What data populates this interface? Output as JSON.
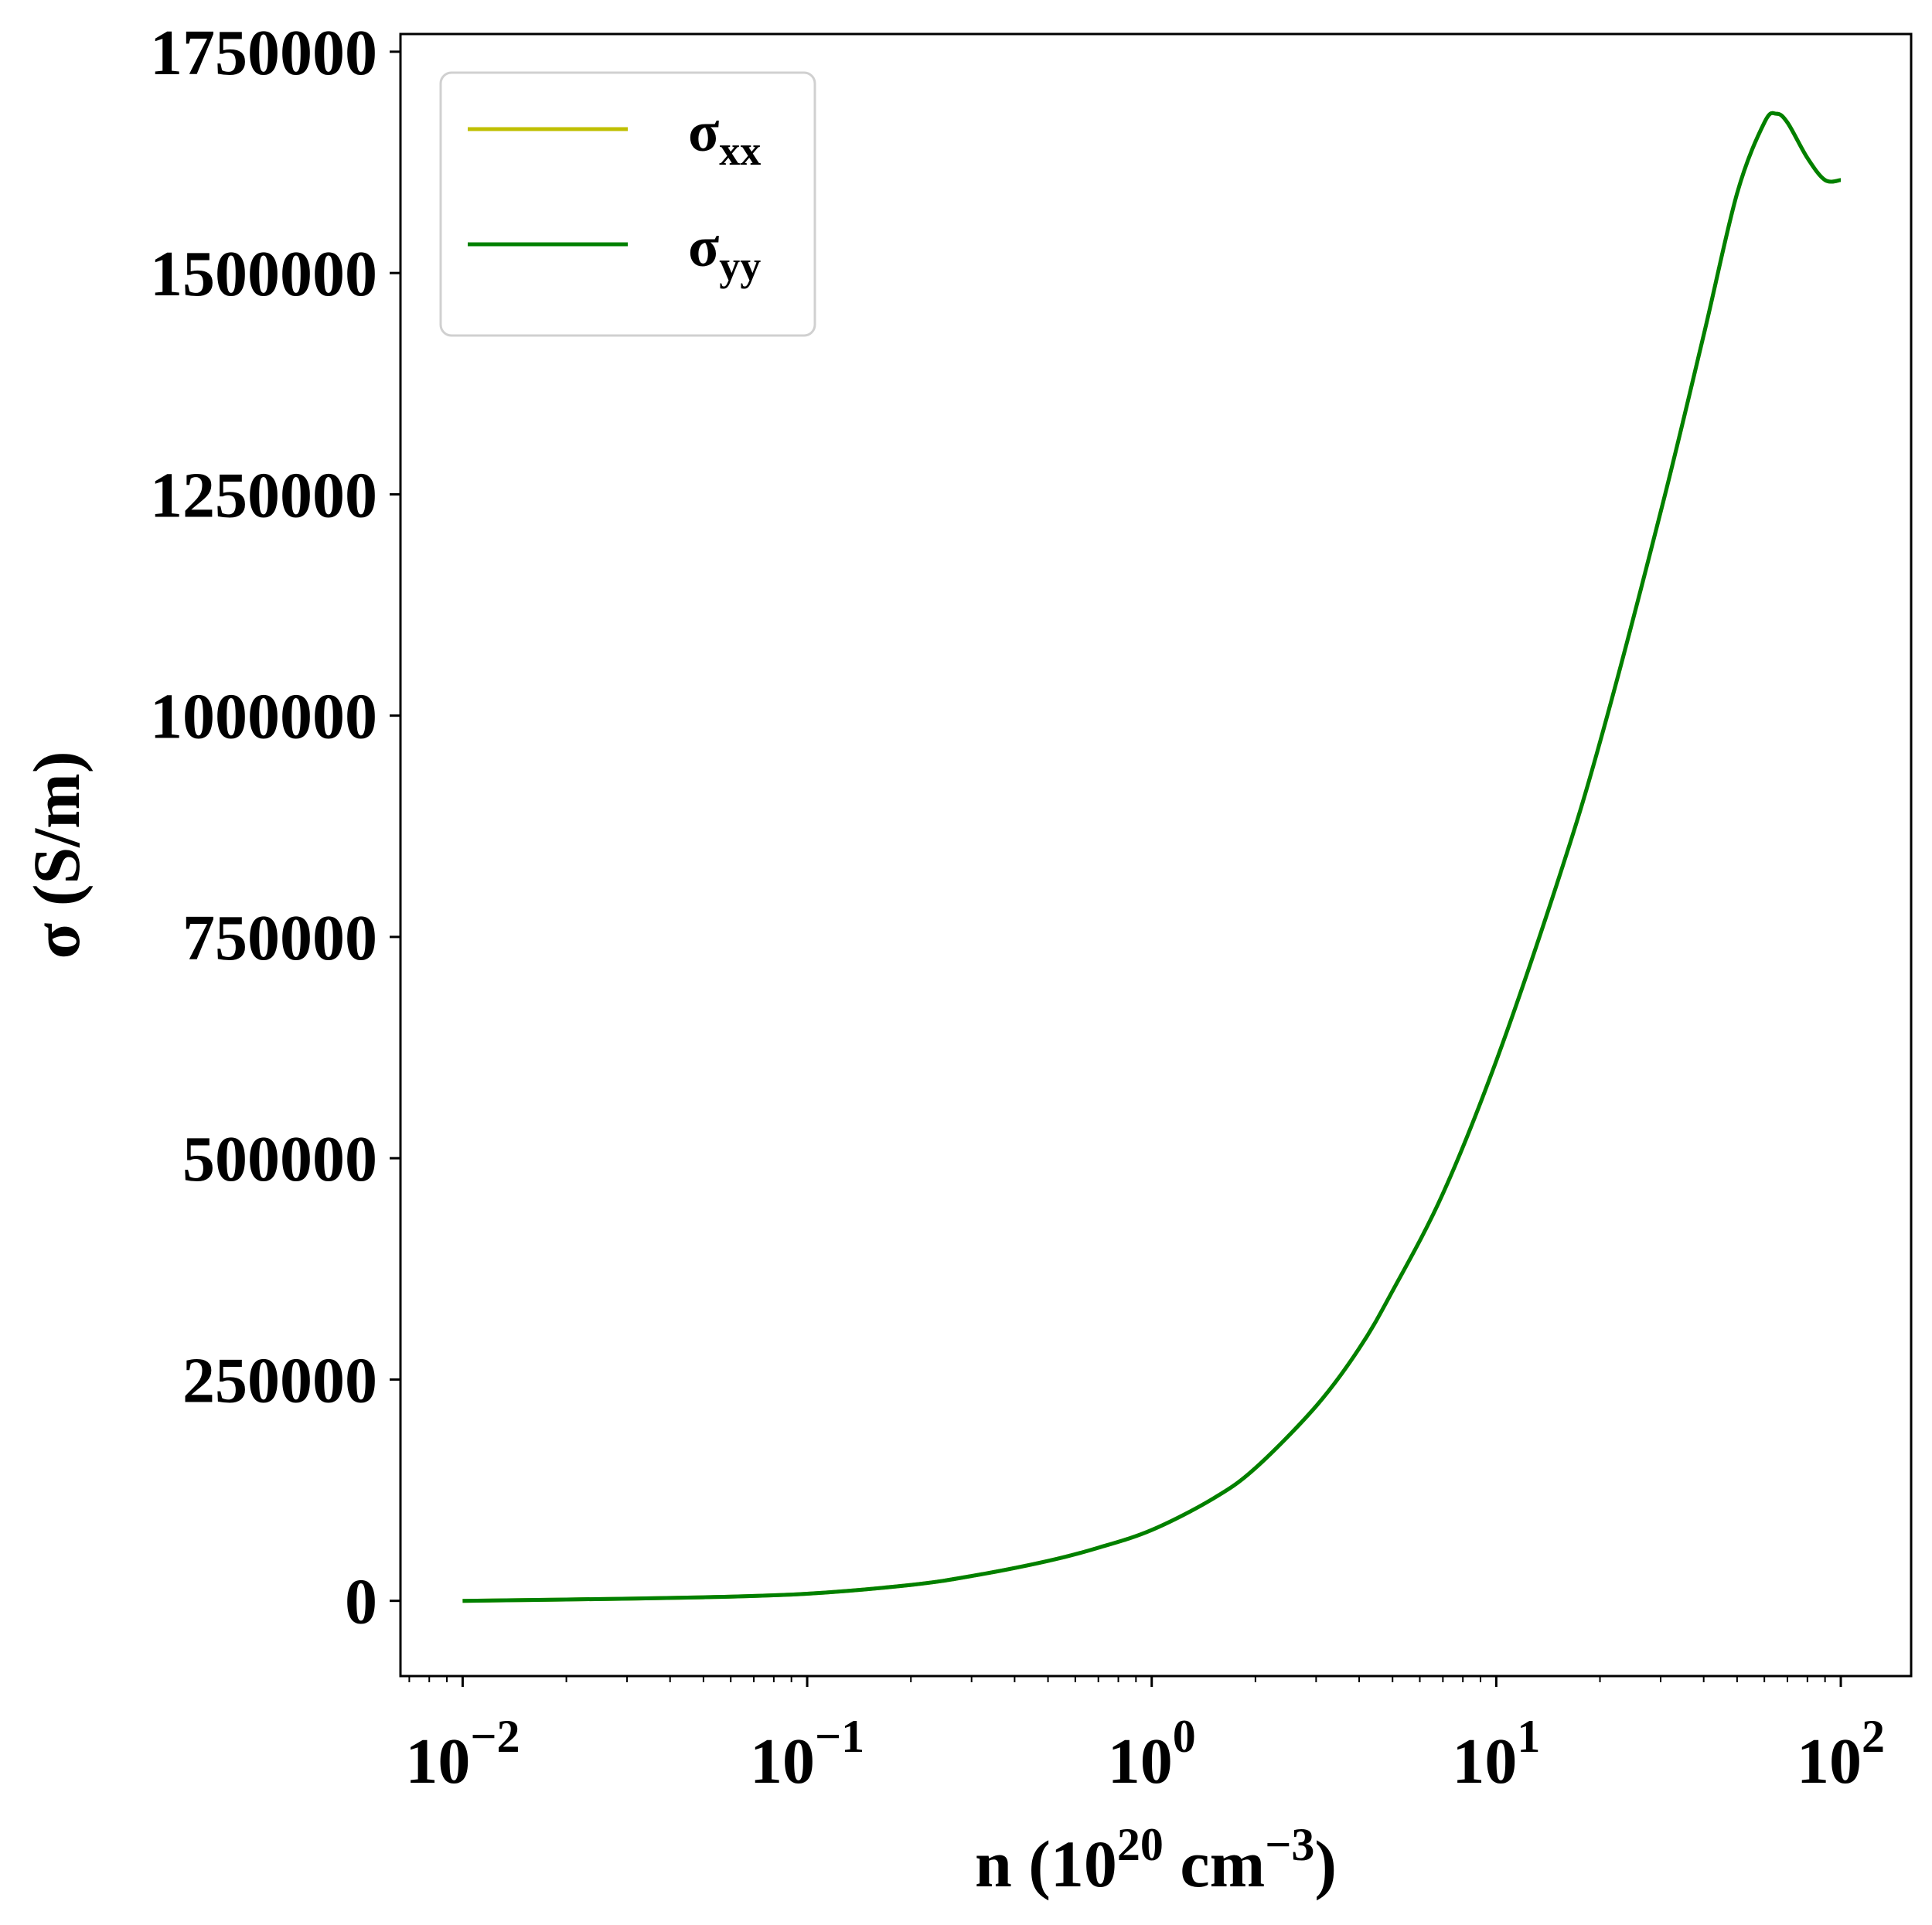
{
  "chart_data": {
    "type": "line",
    "xlabel": "n (10^20 cm^-3)",
    "ylabel": "σ (S/m)",
    "xscale": "log",
    "xlim": [
      0.0066,
      160
    ],
    "ylim": [
      -85000,
      1770000
    ],
    "x_ticks": [
      {
        "value": 0.01,
        "base": "10",
        "exp": "−2"
      },
      {
        "value": 0.1,
        "base": "10",
        "exp": "−1"
      },
      {
        "value": 1,
        "base": "10",
        "exp": "0"
      },
      {
        "value": 10,
        "base": "10",
        "exp": "1"
      },
      {
        "value": 100,
        "base": "10",
        "exp": "2"
      }
    ],
    "y_ticks": [
      {
        "value": 0,
        "label": "0"
      },
      {
        "value": 250000,
        "label": "250000"
      },
      {
        "value": 500000,
        "label": "500000"
      },
      {
        "value": 750000,
        "label": "750000"
      },
      {
        "value": 1000000,
        "label": "1000000"
      },
      {
        "value": 1250000,
        "label": "1250000"
      },
      {
        "value": 1500000,
        "label": "1500000"
      },
      {
        "value": 1750000,
        "label": "1750000"
      }
    ],
    "grid": false,
    "legend_position": "top-left",
    "series": [
      {
        "name": "σxx",
        "symbol": "σ",
        "subscript": "xx",
        "color": "#bfbf00",
        "x": [
          0.01,
          0.02,
          0.05,
          0.1,
          0.2,
          0.3,
          0.5,
          0.7,
          1.0,
          1.5,
          2.0,
          3.0,
          4.0,
          5.0,
          7.0,
          10.0,
          15.0,
          20.0,
          30.0,
          40.0,
          50.0,
          60.0,
          65.0,
          70.0,
          80.0,
          90.0,
          100.0
        ],
        "y": [
          0,
          1500,
          4000,
          8000,
          18000,
          28000,
          45000,
          60000,
          80000,
          115000,
          150000,
          220000,
          285000,
          350000,
          460000,
          610000,
          810000,
          970000,
          1230000,
          1430000,
          1590000,
          1670000,
          1680000,
          1670000,
          1630000,
          1605000,
          1605000
        ]
      },
      {
        "name": "σyy",
        "symbol": "σ",
        "subscript": "yy",
        "color": "#008000",
        "x": [
          0.01,
          0.02,
          0.05,
          0.1,
          0.2,
          0.3,
          0.5,
          0.7,
          1.0,
          1.5,
          2.0,
          3.0,
          4.0,
          5.0,
          7.0,
          10.0,
          15.0,
          20.0,
          30.0,
          40.0,
          50.0,
          60.0,
          65.0,
          70.0,
          80.0,
          90.0,
          100.0
        ],
        "y": [
          0,
          1500,
          4000,
          8000,
          18000,
          28000,
          45000,
          60000,
          80000,
          115000,
          150000,
          220000,
          285000,
          350000,
          460000,
          610000,
          810000,
          970000,
          1230000,
          1430000,
          1590000,
          1670000,
          1680000,
          1670000,
          1630000,
          1605000,
          1605000
        ]
      }
    ]
  }
}
